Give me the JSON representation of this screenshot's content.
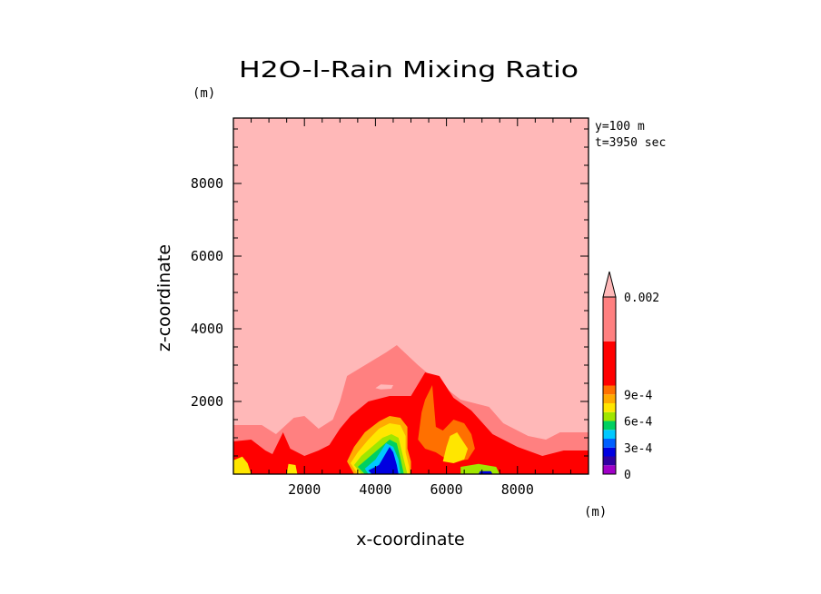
{
  "chart_data": {
    "type": "heatmap",
    "title": "H2O-l-Rain Mixing Ratio",
    "xlabel": "x-coordinate",
    "ylabel": "z-coordinate",
    "x_unit": "(m)",
    "y_unit": "(m)",
    "xlim": [
      0,
      10000
    ],
    "ylim": [
      0,
      9800
    ],
    "x_ticks": [
      2000,
      4000,
      6000,
      8000
    ],
    "y_ticks": [
      2000,
      4000,
      6000,
      8000
    ],
    "annotations": [
      "y=100 m",
      "t=3950 sec"
    ],
    "colorbar": {
      "labels": [
        {
          "value": 0,
          "text": "0"
        },
        {
          "value": 0.0003,
          "text": "3e-4"
        },
        {
          "value": 0.0006,
          "text": "6e-4"
        },
        {
          "value": 0.0009,
          "text": "9e-4"
        },
        {
          "value": 0.002,
          "text": "0.002"
        }
      ],
      "bands": [
        {
          "from": 0,
          "to": 0.0001,
          "color": "#a000c8"
        },
        {
          "from": 0.0001,
          "to": 0.0002,
          "color": "#3000a0"
        },
        {
          "from": 0.0002,
          "to": 0.0003,
          "color": "#0000e0"
        },
        {
          "from": 0.0003,
          "to": 0.0004,
          "color": "#0060ff"
        },
        {
          "from": 0.0004,
          "to": 0.0005,
          "color": "#00c8ff"
        },
        {
          "from": 0.0005,
          "to": 0.0006,
          "color": "#00d060"
        },
        {
          "from": 0.0006,
          "to": 0.0007,
          "color": "#a0e600"
        },
        {
          "from": 0.0007,
          "to": 0.0008,
          "color": "#ffe600"
        },
        {
          "from": 0.0008,
          "to": 0.0009,
          "color": "#ffaa00"
        },
        {
          "from": 0.0009,
          "to": 0.001,
          "color": "#ff7000"
        },
        {
          "from": 0.001,
          "to": 0.0015,
          "color": "#ff0000"
        },
        {
          "from": 0.0015,
          "to": 0.002,
          "color": "#ff8080"
        },
        {
          "from": 0.002,
          "to": null,
          "color": "#ffb8b8"
        }
      ]
    },
    "background_level": 0.0021,
    "regions": [
      {
        "level": 0.0016,
        "points": [
          [
            0,
            0
          ],
          [
            0,
            1350
          ],
          [
            800,
            1350
          ],
          [
            1200,
            1100
          ],
          [
            1700,
            1550
          ],
          [
            2000,
            1600
          ],
          [
            2400,
            1250
          ],
          [
            2800,
            1500
          ],
          [
            3000,
            2000
          ],
          [
            3200,
            2700
          ],
          [
            4300,
            3350
          ],
          [
            4600,
            3550
          ],
          [
            5200,
            3000
          ],
          [
            5800,
            2500
          ],
          [
            6400,
            2050
          ],
          [
            7200,
            1850
          ],
          [
            7600,
            1400
          ],
          [
            8300,
            1050
          ],
          [
            8800,
            950
          ],
          [
            9200,
            1150
          ],
          [
            10000,
            1150
          ],
          [
            10000,
            0
          ]
        ]
      },
      {
        "level": 0.0012,
        "points": [
          [
            0,
            0
          ],
          [
            0,
            900
          ],
          [
            500,
            950
          ],
          [
            900,
            650
          ],
          [
            1100,
            550
          ],
          [
            1400,
            1150
          ],
          [
            1600,
            700
          ],
          [
            2000,
            500
          ],
          [
            2400,
            650
          ],
          [
            2700,
            800
          ],
          [
            3000,
            1250
          ],
          [
            3300,
            1600
          ],
          [
            3800,
            2000
          ],
          [
            4400,
            2150
          ],
          [
            5000,
            2150
          ],
          [
            5400,
            2800
          ],
          [
            5800,
            2700
          ],
          [
            6200,
            2100
          ],
          [
            6700,
            1750
          ],
          [
            7300,
            1100
          ],
          [
            8000,
            750
          ],
          [
            8700,
            500
          ],
          [
            9300,
            650
          ],
          [
            10000,
            650
          ],
          [
            10000,
            0
          ]
        ]
      },
      {
        "level": 0.00095,
        "points": [
          [
            5200,
            950
          ],
          [
            5300,
            1700
          ],
          [
            5400,
            2050
          ],
          [
            5600,
            2450
          ],
          [
            5700,
            1300
          ],
          [
            5900,
            1200
          ],
          [
            6200,
            1500
          ],
          [
            6500,
            1400
          ],
          [
            6700,
            1100
          ],
          [
            6800,
            700
          ],
          [
            6600,
            400
          ],
          [
            6100,
            350
          ],
          [
            5700,
            600
          ],
          [
            5400,
            700
          ]
        ]
      },
      {
        "level": 0.00085,
        "points": [
          [
            3200,
            350
          ],
          [
            3400,
            750
          ],
          [
            3700,
            1150
          ],
          [
            4100,
            1450
          ],
          [
            4400,
            1600
          ],
          [
            4700,
            1550
          ],
          [
            4900,
            1300
          ],
          [
            4900,
            700
          ],
          [
            5000,
            350
          ],
          [
            5000,
            0
          ],
          [
            3400,
            0
          ]
        ]
      },
      {
        "level": 0.00075,
        "points": [
          [
            3300,
            300
          ],
          [
            3500,
            600
          ],
          [
            3800,
            950
          ],
          [
            4100,
            1250
          ],
          [
            4400,
            1400
          ],
          [
            4700,
            1350
          ],
          [
            4850,
            1050
          ],
          [
            4850,
            600
          ],
          [
            4950,
            200
          ],
          [
            4950,
            0
          ],
          [
            3500,
            0
          ]
        ]
      },
      {
        "level": 0.00075,
        "points": [
          [
            5900,
            350
          ],
          [
            6000,
            750
          ],
          [
            6100,
            1050
          ],
          [
            6300,
            1150
          ],
          [
            6600,
            700
          ],
          [
            6500,
            400
          ],
          [
            6200,
            300
          ]
        ]
      },
      {
        "level": 0.00065,
        "points": [
          [
            3400,
            250
          ],
          [
            3600,
            500
          ],
          [
            3900,
            750
          ],
          [
            4200,
            1000
          ],
          [
            4450,
            1100
          ],
          [
            4650,
            1000
          ],
          [
            4750,
            600
          ],
          [
            4850,
            200
          ],
          [
            4900,
            0
          ],
          [
            3600,
            0
          ]
        ]
      },
      {
        "level": 0.00055,
        "points": [
          [
            3500,
            200
          ],
          [
            3800,
            450
          ],
          [
            4100,
            700
          ],
          [
            4400,
            950
          ],
          [
            4600,
            850
          ],
          [
            4700,
            450
          ],
          [
            4800,
            0
          ],
          [
            3700,
            0
          ]
        ]
      },
      {
        "level": 0.00045,
        "points": [
          [
            3700,
            150
          ],
          [
            4000,
            400
          ],
          [
            4300,
            850
          ],
          [
            4500,
            750
          ],
          [
            4650,
            400
          ],
          [
            4700,
            0
          ],
          [
            3800,
            0
          ]
        ]
      },
      {
        "level": 0.00025,
        "points": [
          [
            3800,
            100
          ],
          [
            4100,
            250
          ],
          [
            4400,
            750
          ],
          [
            4500,
            600
          ],
          [
            4600,
            250
          ],
          [
            4650,
            0
          ],
          [
            3900,
            0
          ]
        ]
      },
      {
        "level": 0.00065,
        "points": [
          [
            6400,
            0
          ],
          [
            6400,
            200
          ],
          [
            6900,
            280
          ],
          [
            7400,
            200
          ],
          [
            7500,
            0
          ]
        ]
      },
      {
        "level": 0.00075,
        "points": [
          [
            0,
            0
          ],
          [
            0,
            380
          ],
          [
            250,
            480
          ],
          [
            400,
            300
          ],
          [
            500,
            0
          ]
        ]
      },
      {
        "level": 0.00075,
        "points": [
          [
            1500,
            0
          ],
          [
            1550,
            280
          ],
          [
            1750,
            250
          ],
          [
            1800,
            0
          ]
        ]
      },
      {
        "level": 0.0002,
        "points": [
          [
            6900,
            0
          ],
          [
            6950,
            80
          ],
          [
            7250,
            80
          ],
          [
            7300,
            0
          ]
        ]
      },
      {
        "level": 0.0025,
        "points": [
          [
            4000,
            2370
          ],
          [
            4150,
            2470
          ],
          [
            4500,
            2450
          ],
          [
            4450,
            2350
          ],
          [
            4150,
            2330
          ]
        ]
      }
    ]
  }
}
